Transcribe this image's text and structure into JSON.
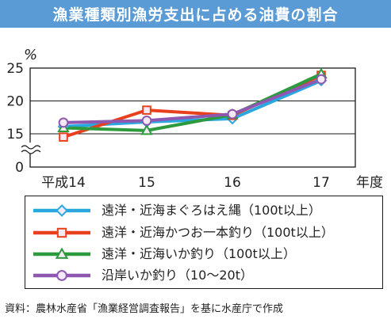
{
  "title": "漁業種類別漁労支出に占める油費の割合",
  "source": "資料：農林水産省「漁業経営調査報告」を基に水産庁で作成",
  "chart_data": {
    "type": "line",
    "title": "漁業種類別漁労支出に占める油費の割合",
    "y_unit": "%",
    "x_unit": "年度",
    "categories": [
      "平成14",
      "15",
      "16",
      "17"
    ],
    "ylim": [
      0,
      25
    ],
    "y_ticks": [
      0,
      15,
      20,
      25
    ],
    "axis_break": true,
    "grid": true,
    "legend_position": "bottom",
    "series": [
      {
        "name": "遠洋・近海まぐろはえ縄（100t以上）",
        "color": "#29a8e0",
        "marker": "diamond",
        "values": [
          16.1,
          16.8,
          17.3,
          23.1
        ]
      },
      {
        "name": "遠洋・近海かつお一本釣り（100t以上）",
        "color": "#e8401c",
        "marker": "square",
        "values": [
          14.5,
          18.6,
          17.8,
          23.9
        ]
      },
      {
        "name": "遠洋・近海いか釣り（100t以上）",
        "color": "#2d9a3e",
        "marker": "triangle",
        "values": [
          15.9,
          15.5,
          17.9,
          24.1
        ]
      },
      {
        "name": "沿岸いか釣り（10〜20t）",
        "color": "#8e57b0",
        "marker": "circle",
        "values": [
          16.7,
          17.0,
          18.0,
          23.3
        ]
      }
    ]
  }
}
